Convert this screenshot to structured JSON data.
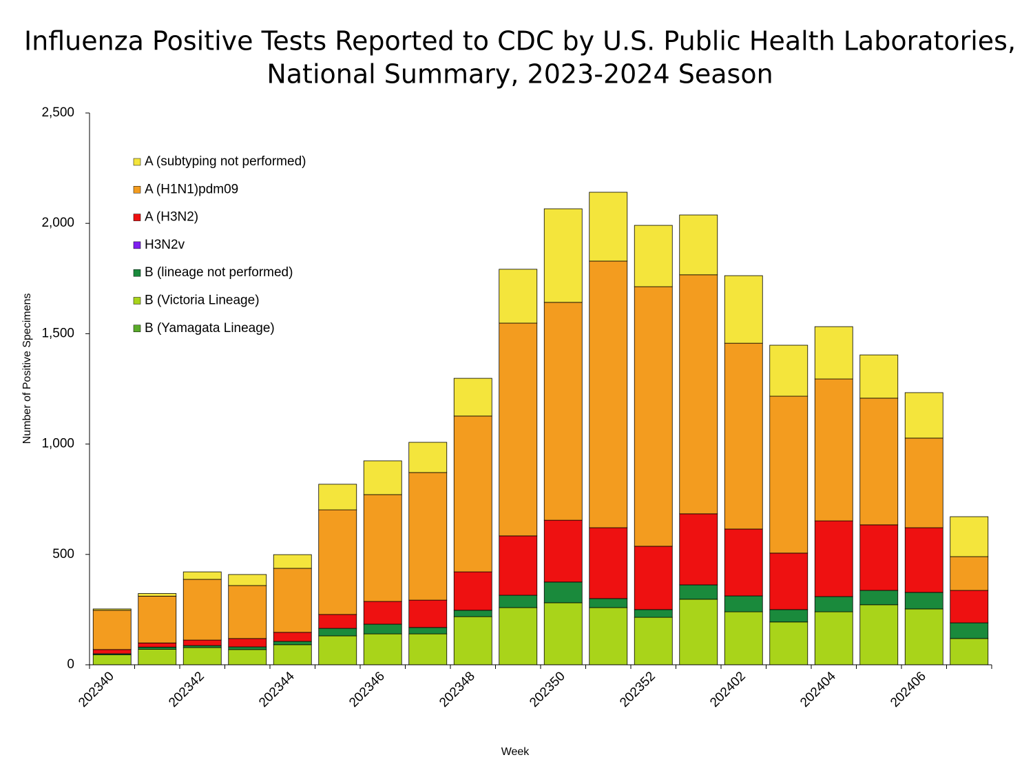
{
  "chart_data": {
    "type": "stacked_bar",
    "title": [
      "Influenza Positive Tests Reported to CDC by U.S. Public Health Laboratories,",
      "National Summary, 2023-2024 Season"
    ],
    "x_label": "Week",
    "y_label": "Number of Positive Specimens",
    "categories": [
      "202340",
      null,
      "202342",
      null,
      "202344",
      null,
      "202346",
      null,
      "202348",
      null,
      "202350",
      null,
      "202352",
      null,
      "202402",
      null,
      "202404",
      null,
      "202406",
      null
    ],
    "ylim": [
      0,
      2500
    ],
    "yticks": [
      0,
      500,
      {
        "value": 1000,
        "label": "1,000"
      },
      {
        "value": 1500,
        "label": "1,500"
      },
      {
        "value": 2000,
        "label": "2,000"
      },
      {
        "value": 2500,
        "label": "2,500"
      }
    ],
    "series": [
      {
        "name": "A (subtyping not performed)",
        "color": "#f4e53c",
        "values": [
          6,
          12,
          34,
          50,
          62,
          116,
          153,
          137,
          171,
          244,
          424,
          312,
          278,
          271,
          306,
          231,
          237,
          196,
          206,
          181
        ]
      },
      {
        "name": "A (H1N1)pdm09",
        "color": "#f39c1f",
        "values": [
          178,
          212,
          275,
          240,
          290,
          474,
          484,
          578,
          706,
          964,
          987,
          1208,
          1176,
          1083,
          842,
          711,
          643,
          574,
          406,
          153
        ]
      },
      {
        "name": "A (H3N2)",
        "color": "#ee1111",
        "values": [
          19,
          19,
          25,
          38,
          41,
          63,
          103,
          124,
          174,
          269,
          280,
          321,
          287,
          322,
          303,
          256,
          343,
          297,
          293,
          147
        ]
      },
      {
        "name": "H3N2v",
        "color": "#7f1ff0",
        "values": [
          0,
          0,
          0,
          0,
          0,
          0,
          0,
          0,
          0,
          0,
          0,
          0,
          0,
          0,
          0,
          0,
          0,
          0,
          0,
          0
        ]
      },
      {
        "name": "B (lineage not performed)",
        "color": "#1a8a3c",
        "values": [
          5,
          10,
          9,
          12,
          15,
          34,
          44,
          29,
          29,
          56,
          94,
          41,
          35,
          65,
          72,
          56,
          69,
          65,
          75,
          71
        ]
      },
      {
        "name": "B (Victoria Lineage)",
        "color": "#a9d41a",
        "values": [
          45,
          70,
          78,
          69,
          91,
          131,
          140,
          140,
          218,
          259,
          281,
          259,
          215,
          297,
          240,
          194,
          240,
          272,
          253,
          119
        ]
      },
      {
        "name": "B (Yamagata Lineage)",
        "color": "#5aab2a",
        "values": [
          0,
          0,
          0,
          0,
          0,
          0,
          0,
          0,
          0,
          0,
          0,
          0,
          0,
          0,
          0,
          0,
          0,
          0,
          0,
          0
        ]
      }
    ]
  }
}
